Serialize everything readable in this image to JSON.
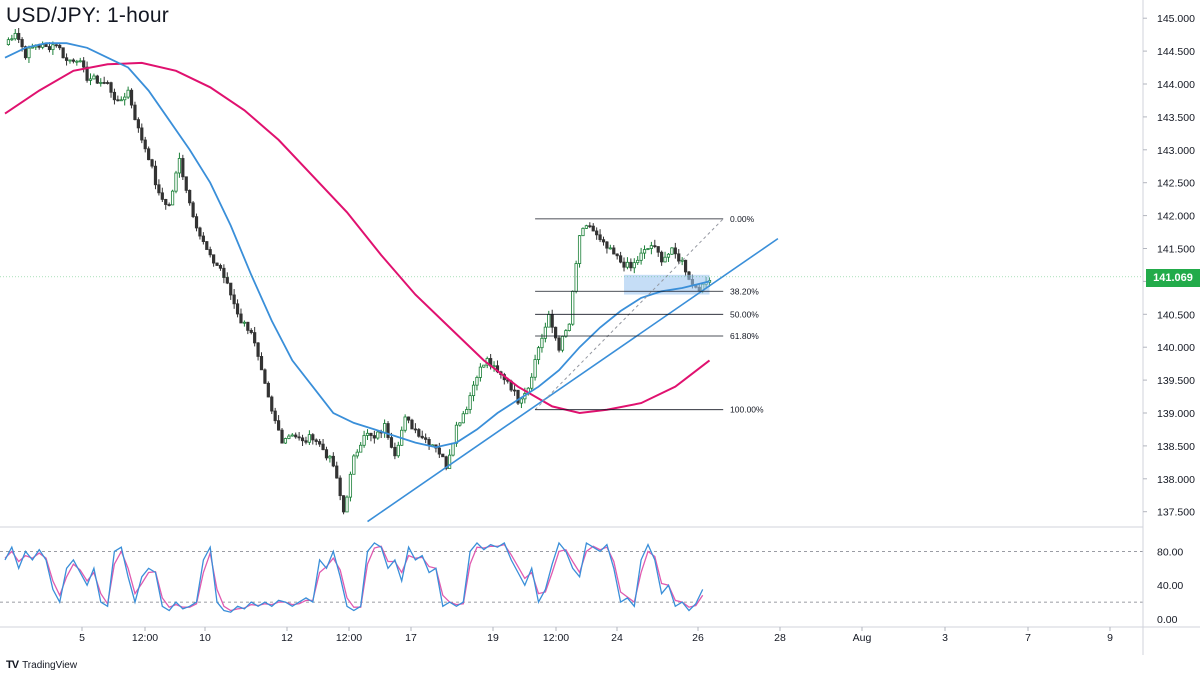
{
  "title": "USD/JPY: 1-hour",
  "brand": {
    "logo": "TV",
    "name": "TradingView"
  },
  "last_price": {
    "label": "141.069",
    "value": 141.069,
    "color": "#22ab4a"
  },
  "colors": {
    "up_candle": "#1a7f37",
    "down_candle": "#333333",
    "ma_fast": "#3a8fd9",
    "ma_slow": "#e0116f",
    "stoch_k": "#3a8fd9",
    "stoch_d": "#e05bb0",
    "support_zone": "#9fc7f0"
  },
  "chart_data": [
    {
      "type": "candlestick",
      "title": "USD/JPY: 1-hour",
      "y_ticks": [
        "145.000",
        "144.500",
        "144.000",
        "143.500",
        "143.000",
        "142.500",
        "142.000",
        "141.500",
        "141.000",
        "140.500",
        "140.000",
        "139.500",
        "139.000",
        "138.500",
        "138.000",
        "137.500"
      ],
      "ylim": [
        137.3,
        145.2
      ],
      "x_tick_labels": [
        "5",
        "12:00",
        "10",
        "12",
        "12:00",
        "17",
        "19",
        "12:00",
        "24",
        "26",
        "28",
        "Aug",
        "3",
        "7",
        "9"
      ],
      "price_path": [
        [
          0,
          144.6
        ],
        [
          3,
          144.8
        ],
        [
          6,
          144.45
        ],
        [
          9,
          144.6
        ],
        [
          12,
          144.55
        ],
        [
          15,
          144.62
        ],
        [
          18,
          144.35
        ],
        [
          21,
          144.4
        ],
        [
          24,
          144.1
        ],
        [
          27,
          144.05
        ],
        [
          30,
          144.0
        ],
        [
          33,
          143.7
        ],
        [
          36,
          143.9
        ],
        [
          39,
          143.3
        ],
        [
          42,
          142.9
        ],
        [
          45,
          142.3
        ],
        [
          48,
          142.15
        ],
        [
          51,
          142.85
        ],
        [
          54,
          142.2
        ],
        [
          57,
          141.7
        ],
        [
          60,
          141.35
        ],
        [
          63,
          141.2
        ],
        [
          66,
          140.8
        ],
        [
          69,
          140.4
        ],
        [
          72,
          140.25
        ],
        [
          75,
          139.6
        ],
        [
          78,
          139.0
        ],
        [
          81,
          138.6
        ],
        [
          84,
          138.7
        ],
        [
          87,
          138.55
        ],
        [
          90,
          138.65
        ],
        [
          93,
          138.45
        ],
        [
          96,
          138.2
        ],
        [
          99,
          137.5
        ],
        [
          102,
          138.3
        ],
        [
          105,
          138.7
        ],
        [
          108,
          138.6
        ],
        [
          111,
          138.8
        ],
        [
          114,
          138.4
        ],
        [
          117,
          138.9
        ],
        [
          120,
          138.75
        ],
        [
          123,
          138.6
        ],
        [
          126,
          138.5
        ],
        [
          129,
          138.2
        ],
        [
          132,
          138.8
        ],
        [
          135,
          139.1
        ],
        [
          138,
          139.6
        ],
        [
          141,
          139.8
        ],
        [
          144,
          139.6
        ],
        [
          147,
          139.5
        ],
        [
          150,
          139.2
        ],
        [
          153,
          139.4
        ],
        [
          156,
          140.0
        ],
        [
          159,
          140.45
        ],
        [
          162,
          140.0
        ],
        [
          165,
          140.35
        ],
        [
          168,
          141.7
        ],
        [
          171,
          141.85
        ],
        [
          174,
          141.6
        ],
        [
          177,
          141.45
        ],
        [
          180,
          141.3
        ],
        [
          183,
          141.2
        ],
        [
          186,
          141.4
        ],
        [
          189,
          141.55
        ],
        [
          192,
          141.35
        ],
        [
          195,
          141.45
        ],
        [
          198,
          141.3
        ],
        [
          201,
          140.95
        ],
        [
          204,
          140.9
        ],
        [
          206,
          141.07
        ]
      ],
      "ma_fast": [
        [
          0,
          144.4
        ],
        [
          6,
          144.55
        ],
        [
          12,
          144.62
        ],
        [
          18,
          144.62
        ],
        [
          24,
          144.55
        ],
        [
          30,
          144.4
        ],
        [
          36,
          144.25
        ],
        [
          42,
          143.9
        ],
        [
          48,
          143.45
        ],
        [
          54,
          143.0
        ],
        [
          60,
          142.5
        ],
        [
          66,
          141.85
        ],
        [
          72,
          141.1
        ],
        [
          78,
          140.4
        ],
        [
          84,
          139.8
        ],
        [
          90,
          139.4
        ],
        [
          96,
          139.0
        ],
        [
          102,
          138.85
        ],
        [
          108,
          138.75
        ],
        [
          114,
          138.65
        ],
        [
          120,
          138.55
        ],
        [
          126,
          138.48
        ],
        [
          132,
          138.55
        ],
        [
          138,
          138.75
        ],
        [
          144,
          139.0
        ],
        [
          150,
          139.2
        ],
        [
          156,
          139.4
        ],
        [
          162,
          139.65
        ],
        [
          168,
          140.0
        ],
        [
          174,
          140.3
        ],
        [
          180,
          140.55
        ],
        [
          186,
          140.75
        ],
        [
          192,
          140.85
        ],
        [
          198,
          140.9
        ],
        [
          206,
          141.0
        ]
      ],
      "ma_slow": [
        [
          0,
          143.55
        ],
        [
          10,
          143.9
        ],
        [
          20,
          144.2
        ],
        [
          30,
          144.3
        ],
        [
          40,
          144.32
        ],
        [
          50,
          144.2
        ],
        [
          60,
          143.95
        ],
        [
          70,
          143.6
        ],
        [
          80,
          143.15
        ],
        [
          90,
          142.6
        ],
        [
          100,
          142.05
        ],
        [
          110,
          141.4
        ],
        [
          120,
          140.8
        ],
        [
          130,
          140.3
        ],
        [
          140,
          139.8
        ],
        [
          150,
          139.4
        ],
        [
          160,
          139.1
        ],
        [
          168,
          139.0
        ],
        [
          176,
          139.05
        ],
        [
          186,
          139.15
        ],
        [
          196,
          139.4
        ],
        [
          206,
          139.8
        ]
      ],
      "trendline": {
        "start": [
          106,
          137.35
        ],
        "end": [
          226,
          141.65
        ]
      },
      "fibonacci": {
        "x_start": 155,
        "x_end": 210,
        "label_x": 212,
        "levels": [
          {
            "label": "0.00%",
            "price": 141.95
          },
          {
            "label": "38.20%",
            "price": 140.85
          },
          {
            "label": "50.00%",
            "price": 140.5
          },
          {
            "label": "61.80%",
            "price": 140.17
          },
          {
            "label": "100.00%",
            "price": 139.05
          }
        ],
        "diagonal": {
          "start": [
            155,
            139.05
          ],
          "end": [
            210,
            141.95
          ]
        }
      },
      "support_zone": {
        "x_start": 181,
        "x_end": 206,
        "price_low": 140.8,
        "price_high": 141.1
      }
    },
    {
      "type": "line",
      "title": "",
      "y_ticks": [
        "80.00",
        "40.00",
        "0.00"
      ],
      "ylim": [
        -5,
        92
      ],
      "dashed_levels": [
        80,
        20
      ],
      "stoch_k": [
        [
          0,
          70
        ],
        [
          2,
          85
        ],
        [
          4,
          60
        ],
        [
          6,
          80
        ],
        [
          8,
          70
        ],
        [
          10,
          82
        ],
        [
          12,
          70
        ],
        [
          14,
          35
        ],
        [
          16,
          20
        ],
        [
          18,
          60
        ],
        [
          20,
          70
        ],
        [
          22,
          55
        ],
        [
          24,
          40
        ],
        [
          26,
          60
        ],
        [
          28,
          20
        ],
        [
          30,
          15
        ],
        [
          32,
          80
        ],
        [
          34,
          85
        ],
        [
          36,
          50
        ],
        [
          38,
          20
        ],
        [
          40,
          50
        ],
        [
          42,
          60
        ],
        [
          44,
          55
        ],
        [
          46,
          15
        ],
        [
          48,
          10
        ],
        [
          50,
          20
        ],
        [
          52,
          12
        ],
        [
          54,
          15
        ],
        [
          56,
          20
        ],
        [
          58,
          70
        ],
        [
          60,
          85
        ],
        [
          62,
          20
        ],
        [
          64,
          10
        ],
        [
          66,
          8
        ],
        [
          68,
          15
        ],
        [
          70,
          12
        ],
        [
          72,
          20
        ],
        [
          74,
          15
        ],
        [
          76,
          20
        ],
        [
          78,
          15
        ],
        [
          80,
          22
        ],
        [
          82,
          20
        ],
        [
          84,
          15
        ],
        [
          86,
          20
        ],
        [
          88,
          25
        ],
        [
          90,
          20
        ],
        [
          92,
          70
        ],
        [
          94,
          60
        ],
        [
          96,
          80
        ],
        [
          98,
          50
        ],
        [
          100,
          15
        ],
        [
          102,
          10
        ],
        [
          104,
          15
        ],
        [
          106,
          80
        ],
        [
          108,
          90
        ],
        [
          110,
          85
        ],
        [
          112,
          60
        ],
        [
          114,
          70
        ],
        [
          116,
          45
        ],
        [
          118,
          85
        ],
        [
          120,
          70
        ],
        [
          122,
          75
        ],
        [
          124,
          55
        ],
        [
          126,
          60
        ],
        [
          128,
          15
        ],
        [
          130,
          20
        ],
        [
          132,
          15
        ],
        [
          134,
          20
        ],
        [
          136,
          80
        ],
        [
          138,
          90
        ],
        [
          140,
          82
        ],
        [
          142,
          88
        ],
        [
          144,
          85
        ],
        [
          146,
          90
        ],
        [
          148,
          70
        ],
        [
          150,
          55
        ],
        [
          152,
          40
        ],
        [
          154,
          60
        ],
        [
          156,
          20
        ],
        [
          158,
          35
        ],
        [
          160,
          65
        ],
        [
          162,
          90
        ],
        [
          164,
          80
        ],
        [
          166,
          60
        ],
        [
          168,
          50
        ],
        [
          170,
          90
        ],
        [
          172,
          85
        ],
        [
          174,
          80
        ],
        [
          176,
          88
        ],
        [
          178,
          60
        ],
        [
          180,
          20
        ],
        [
          182,
          25
        ],
        [
          184,
          15
        ],
        [
          186,
          70
        ],
        [
          188,
          88
        ],
        [
          190,
          70
        ],
        [
          192,
          30
        ],
        [
          194,
          40
        ],
        [
          196,
          15
        ],
        [
          198,
          20
        ],
        [
          200,
          10
        ],
        [
          202,
          18
        ],
        [
          204,
          35
        ]
      ],
      "stoch_d": [
        [
          0,
          72
        ],
        [
          2,
          80
        ],
        [
          4,
          68
        ],
        [
          6,
          75
        ],
        [
          8,
          72
        ],
        [
          10,
          78
        ],
        [
          12,
          72
        ],
        [
          14,
          45
        ],
        [
          16,
          28
        ],
        [
          18,
          50
        ],
        [
          20,
          65
        ],
        [
          22,
          58
        ],
        [
          24,
          45
        ],
        [
          26,
          55
        ],
        [
          28,
          30
        ],
        [
          30,
          18
        ],
        [
          32,
          65
        ],
        [
          34,
          80
        ],
        [
          36,
          60
        ],
        [
          38,
          30
        ],
        [
          40,
          42
        ],
        [
          42,
          55
        ],
        [
          44,
          56
        ],
        [
          46,
          25
        ],
        [
          48,
          14
        ],
        [
          50,
          17
        ],
        [
          52,
          14
        ],
        [
          54,
          14
        ],
        [
          56,
          18
        ],
        [
          58,
          55
        ],
        [
          60,
          78
        ],
        [
          62,
          35
        ],
        [
          64,
          15
        ],
        [
          66,
          10
        ],
        [
          68,
          12
        ],
        [
          70,
          13
        ],
        [
          72,
          17
        ],
        [
          74,
          16
        ],
        [
          76,
          18
        ],
        [
          78,
          17
        ],
        [
          80,
          20
        ],
        [
          82,
          20
        ],
        [
          84,
          17
        ],
        [
          86,
          18
        ],
        [
          88,
          22
        ],
        [
          90,
          22
        ],
        [
          92,
          55
        ],
        [
          94,
          62
        ],
        [
          96,
          72
        ],
        [
          98,
          58
        ],
        [
          100,
          25
        ],
        [
          102,
          14
        ],
        [
          104,
          14
        ],
        [
          106,
          65
        ],
        [
          108,
          84
        ],
        [
          110,
          86
        ],
        [
          112,
          68
        ],
        [
          114,
          68
        ],
        [
          116,
          55
        ],
        [
          118,
          75
        ],
        [
          120,
          72
        ],
        [
          122,
          73
        ],
        [
          124,
          62
        ],
        [
          126,
          60
        ],
        [
          128,
          28
        ],
        [
          130,
          20
        ],
        [
          132,
          17
        ],
        [
          134,
          18
        ],
        [
          136,
          65
        ],
        [
          138,
          85
        ],
        [
          140,
          84
        ],
        [
          142,
          86
        ],
        [
          144,
          86
        ],
        [
          146,
          88
        ],
        [
          148,
          76
        ],
        [
          150,
          62
        ],
        [
          152,
          48
        ],
        [
          154,
          55
        ],
        [
          156,
          30
        ],
        [
          158,
          32
        ],
        [
          160,
          55
        ],
        [
          162,
          80
        ],
        [
          164,
          82
        ],
        [
          166,
          68
        ],
        [
          168,
          55
        ],
        [
          170,
          80
        ],
        [
          172,
          86
        ],
        [
          174,
          82
        ],
        [
          176,
          85
        ],
        [
          178,
          68
        ],
        [
          180,
          32
        ],
        [
          182,
          26
        ],
        [
          184,
          20
        ],
        [
          186,
          55
        ],
        [
          188,
          80
        ],
        [
          190,
          74
        ],
        [
          192,
          42
        ],
        [
          194,
          40
        ],
        [
          196,
          22
        ],
        [
          198,
          20
        ],
        [
          200,
          14
        ],
        [
          202,
          16
        ],
        [
          204,
          28
        ]
      ]
    }
  ]
}
